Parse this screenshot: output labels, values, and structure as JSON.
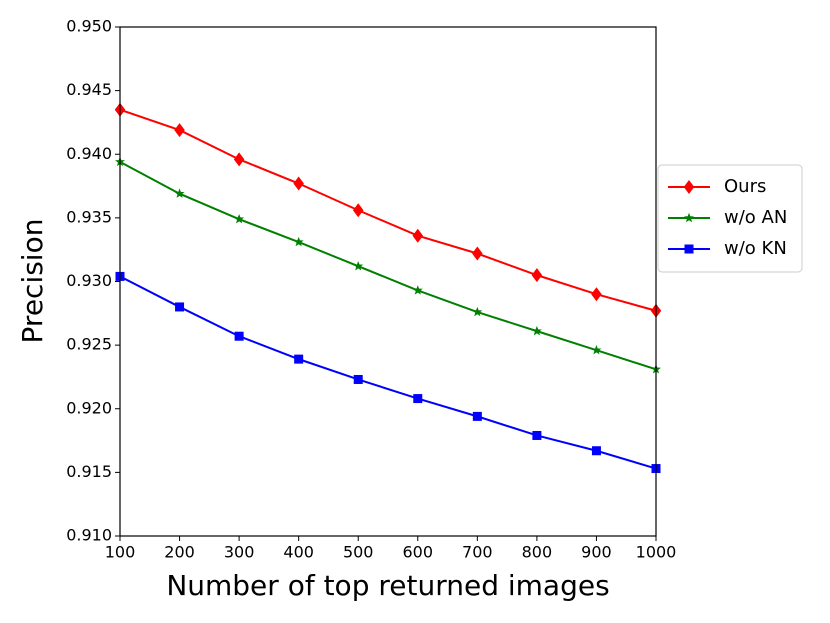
{
  "chart_data": {
    "type": "line",
    "x_label": "Number of top returned images",
    "y_label": "Precision",
    "x": [
      100,
      200,
      300,
      400,
      500,
      600,
      700,
      800,
      900,
      1000
    ],
    "series": [
      {
        "name": "Ours",
        "color": "#ff0000",
        "marker": "diamond",
        "values": [
          0.9435,
          0.9419,
          0.9396,
          0.9377,
          0.9356,
          0.9336,
          0.9322,
          0.9305,
          0.929,
          0.9277
        ]
      },
      {
        "name": "w/o AN",
        "color": "#008000",
        "marker": "star",
        "values": [
          0.9394,
          0.9369,
          0.9349,
          0.9331,
          0.9312,
          0.9293,
          0.9276,
          0.9261,
          0.9246,
          0.9231
        ]
      },
      {
        "name": "w/o KN",
        "color": "#0000ff",
        "marker": "square",
        "values": [
          0.9304,
          0.928,
          0.9257,
          0.9239,
          0.9223,
          0.9208,
          0.9194,
          0.9179,
          0.9167,
          0.9153
        ]
      }
    ],
    "xlim": [
      100,
      1000
    ],
    "xticks": [
      100,
      200,
      300,
      400,
      500,
      600,
      700,
      800,
      900,
      1000
    ],
    "ylim": [
      0.91,
      0.95
    ],
    "yticks": [
      {
        "value": 0.91,
        "label": "0.910"
      },
      0.915,
      {
        "value": 0.92,
        "label": "0.920"
      },
      0.925,
      {
        "value": 0.93,
        "label": "0.930"
      },
      0.935,
      {
        "value": 0.94,
        "label": "0.940"
      },
      0.945,
      {
        "value": 0.95,
        "label": "0.950"
      }
    ],
    "grid": false,
    "legend": "outside right"
  }
}
